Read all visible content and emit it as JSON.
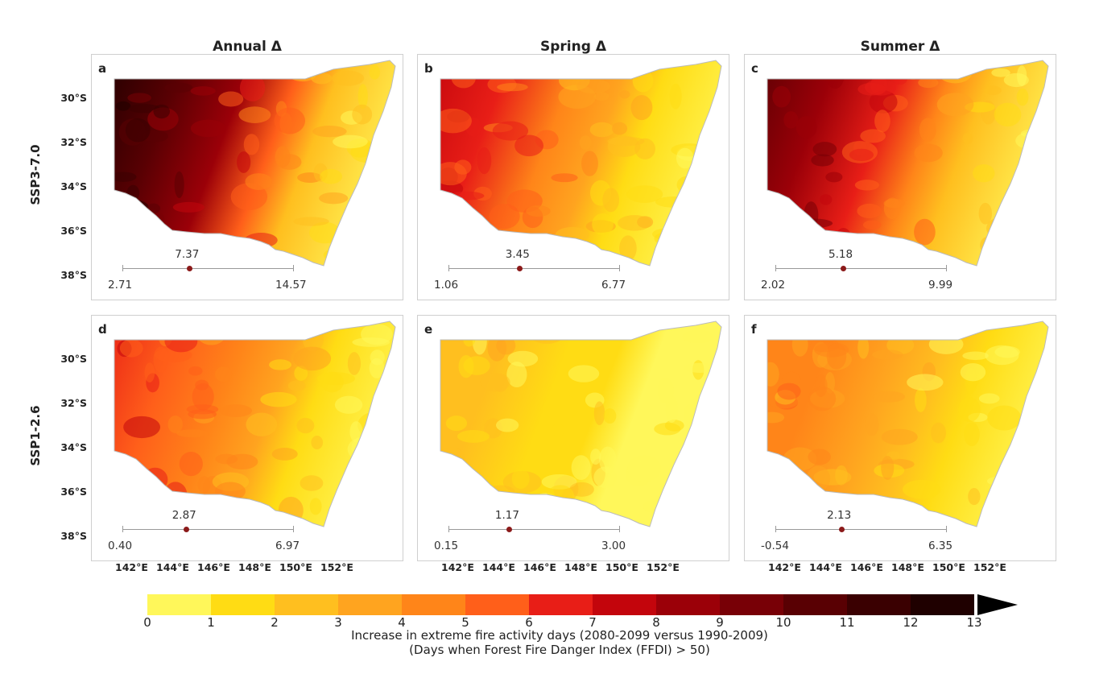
{
  "columns": [
    "Annual Δ",
    "Spring Δ",
    "Summer Δ"
  ],
  "rows": [
    "SSP3-7.0",
    "SSP1-2.6"
  ],
  "lat_labels": [
    "30°S",
    "32°S",
    "34°S",
    "36°S",
    "38°S"
  ],
  "lon_labels": [
    "142°E",
    "144°E",
    "146°E",
    "148°E",
    "150°E",
    "152°E"
  ],
  "panels": [
    {
      "letter": "a",
      "min": "2.71",
      "mean": "7.37",
      "max": "14.57",
      "intensity": 0.85
    },
    {
      "letter": "b",
      "min": "1.06",
      "mean": "3.45",
      "max": "6.77",
      "intensity": 0.5
    },
    {
      "letter": "c",
      "min": "2.02",
      "mean": "5.18",
      "max": "9.99",
      "intensity": 0.7
    },
    {
      "letter": "d",
      "min": "0.40",
      "mean": "2.87",
      "max": "6.97",
      "intensity": 0.45
    },
    {
      "letter": "e",
      "min": "0.15",
      "mean": "1.17",
      "max": "3.00",
      "intensity": 0.18
    },
    {
      "letter": "f",
      "min": "-0.54",
      "mean": "2.13",
      "max": "6.35",
      "intensity": 0.32
    }
  ],
  "colorbar": {
    "ticks": [
      "0",
      "1",
      "2",
      "3",
      "4",
      "5",
      "6",
      "7",
      "8",
      "9",
      "10",
      "11",
      "12",
      "13"
    ],
    "colors": [
      "#fff75a",
      "#ffdc14",
      "#ffbf1f",
      "#ffa41f",
      "#ff8519",
      "#ff5f1a",
      "#e81e17",
      "#c3050c",
      "#9b0008",
      "#780006",
      "#590003",
      "#3a0001",
      "#1f0000"
    ],
    "label_line1": "Increase in extreme fire activity days (2080-2099 versus 1990-2009)",
    "label_line2": "(Days when Forest Fire Danger Index (FFDI) > 50)"
  }
}
